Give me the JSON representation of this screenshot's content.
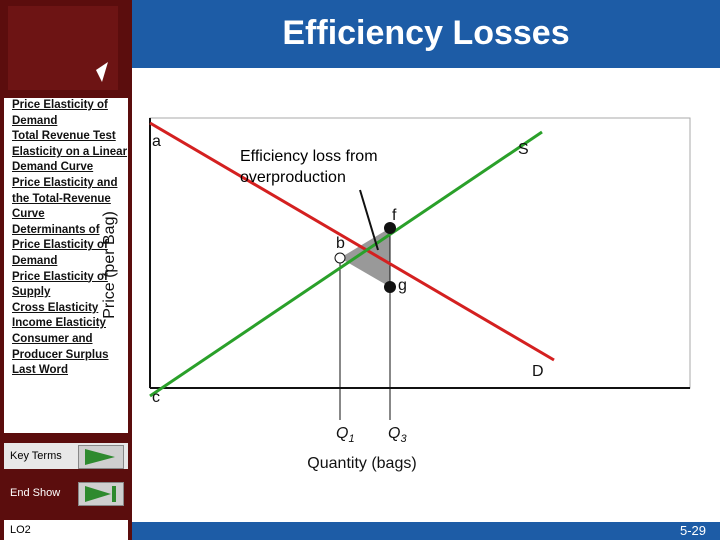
{
  "header": {
    "title": "Efficiency Losses"
  },
  "sidebar": {
    "links": [
      "Price Elasticity of Demand",
      "Total Revenue Test",
      "Elasticity on a Linear Demand Curve",
      "Price Elasticity and the Total-Revenue Curve",
      "Determinants of Price Elasticity of Demand",
      "Price Elasticity of Supply",
      "Cross Elasticity",
      "Income Elasticity",
      "Consumer and Producer Surplus",
      "Last Word"
    ],
    "key_terms": "Key Terms",
    "end_show": "End Show",
    "objective": "LO2"
  },
  "diagram": {
    "point_a": "a",
    "supply": "S",
    "demand": "D",
    "point_b": "b",
    "point_c": "c",
    "point_f": "f",
    "point_g": "g",
    "callout": "Efficiency loss from overproduction",
    "q1": {
      "letter": "Q",
      "subscript": "1"
    },
    "q3": {
      "letter": "Q",
      "subscript": "3"
    },
    "x_axis_label": "Quantity (bags)",
    "y_axis_label": "Price (per Bag)"
  },
  "footer": {
    "slide_number": "5-29"
  }
}
